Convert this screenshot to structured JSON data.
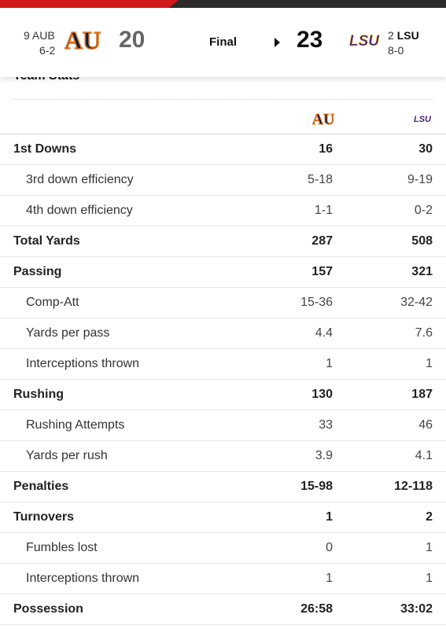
{
  "header": {
    "away": {
      "rank": "9",
      "abbr": "AUB",
      "record": "6-2",
      "score": "20",
      "logo_text": "AU",
      "color": "#0c2340",
      "accent": "#e87722"
    },
    "home": {
      "rank": "2",
      "abbr": "LSU",
      "record": "8-0",
      "score": "23",
      "logo_text": "LSU",
      "color": "#461d7c",
      "accent": "#fdd023"
    },
    "status": "Final",
    "winner_indicator": "play-arrow-icon"
  },
  "team_stats": {
    "title": "Team Stats",
    "rows": [
      {
        "label": "1st Downs",
        "away": "16",
        "home": "30",
        "kind": "main"
      },
      {
        "label": "3rd down efficiency",
        "away": "5-18",
        "home": "9-19",
        "kind": "sub"
      },
      {
        "label": "4th down efficiency",
        "away": "1-1",
        "home": "0-2",
        "kind": "sub"
      },
      {
        "label": "Total Yards",
        "away": "287",
        "home": "508",
        "kind": "main"
      },
      {
        "label": "Passing",
        "away": "157",
        "home": "321",
        "kind": "main"
      },
      {
        "label": "Comp-Att",
        "away": "15-36",
        "home": "32-42",
        "kind": "sub"
      },
      {
        "label": "Yards per pass",
        "away": "4.4",
        "home": "7.6",
        "kind": "sub"
      },
      {
        "label": "Interceptions thrown",
        "away": "1",
        "home": "1",
        "kind": "sub"
      },
      {
        "label": "Rushing",
        "away": "130",
        "home": "187",
        "kind": "main"
      },
      {
        "label": "Rushing Attempts",
        "away": "33",
        "home": "46",
        "kind": "sub"
      },
      {
        "label": "Yards per rush",
        "away": "3.9",
        "home": "4.1",
        "kind": "sub"
      },
      {
        "label": "Penalties",
        "away": "15-98",
        "home": "12-118",
        "kind": "main"
      },
      {
        "label": "Turnovers",
        "away": "1",
        "home": "2",
        "kind": "main"
      },
      {
        "label": "Fumbles lost",
        "away": "0",
        "home": "1",
        "kind": "sub"
      },
      {
        "label": "Interceptions thrown",
        "away": "1",
        "home": "1",
        "kind": "sub"
      },
      {
        "label": "Possession",
        "away": "26:58",
        "home": "33:02",
        "kind": "main"
      }
    ]
  }
}
